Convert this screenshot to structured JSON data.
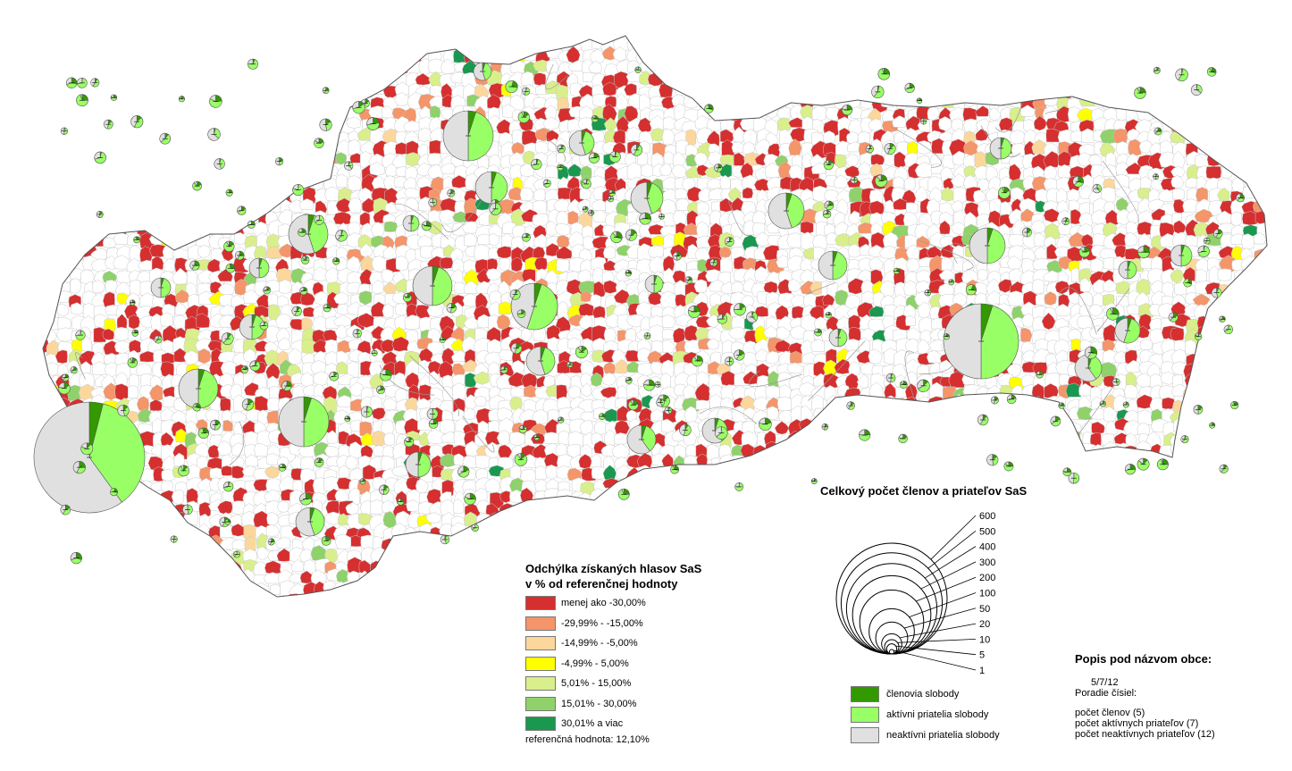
{
  "deviation_legend": {
    "title_line1": "Odchýlka získaných hlasov SaS",
    "title_line2": "v % od referenčnej hodnoty",
    "items": [
      {
        "label": "menej ako -30,00%",
        "color": "#d62f2f"
      },
      {
        "label": "-29,99% - -15,00%",
        "color": "#f4956a"
      },
      {
        "label": "-14,99% - -5,00%",
        "color": "#fcd79c"
      },
      {
        "label": "-4,99% - 5,00%",
        "color": "#ffff00"
      },
      {
        "label": "5,01% - 15,00%",
        "color": "#d9ef8b"
      },
      {
        "label": "15,01% - 30,00%",
        "color": "#8fd16a"
      },
      {
        "label": "30,01% a viac",
        "color": "#1a9850"
      }
    ],
    "reference_note": "referenčná hodnota: 12,10%"
  },
  "size_legend": {
    "title": "Celkový počet členov a priateľov SaS",
    "values": [
      600,
      500,
      400,
      300,
      200,
      100,
      50,
      20,
      10,
      5,
      1
    ]
  },
  "member_legend": {
    "items": [
      {
        "label": "členovia slobody",
        "color": "#339900"
      },
      {
        "label": "aktívni priatelia slobody",
        "color": "#99ff66"
      },
      {
        "label": "neaktívni priatelia slobody",
        "color": "#e0e0e0"
      }
    ]
  },
  "caption": {
    "title": "Popis pod názvom obce:",
    "example": "5/7/12",
    "order_label": "Poradie čísiel:",
    "lines": [
      "počet členov (5)",
      "počet aktívnych priateľov (7)",
      "počet neaktívnych priateľov (12)"
    ]
  }
}
